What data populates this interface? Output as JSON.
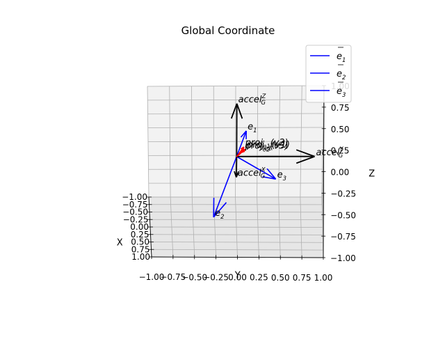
{
  "chart_data": {
    "type": "3d-quiver",
    "title": "Global Coordinate",
    "xlabel": "X",
    "ylabel": "Y",
    "zlabel": "Z",
    "xlim": [
      -1.0,
      1.0
    ],
    "ylim": [
      -1.0,
      1.0
    ],
    "zlim": [
      -1.0,
      1.0
    ],
    "x_ticks": [
      "−1.00",
      "−0.75",
      "−0.50",
      "−0.25",
      "0.00",
      "0.25",
      "0.50",
      "0.75",
      "1.00"
    ],
    "y_ticks": [
      "−1.00",
      "−0.75",
      "−0.50",
      "−0.25",
      "0.00",
      "0.25",
      "0.50",
      "0.75",
      "1.00"
    ],
    "z_ticks": [
      "−1.00",
      "−0.75",
      "−0.50",
      "−0.25",
      "0.00",
      "0.25",
      "0.50",
      "0.75",
      "1.00"
    ],
    "grid": true,
    "legend_position": "top-right",
    "legend": [
      {
        "base": "e",
        "sub": "1",
        "color": "#0000ff"
      },
      {
        "base": "e",
        "sub": "2",
        "color": "#0000ff"
      },
      {
        "base": "e",
        "sub": "3",
        "color": "#0000ff"
      }
    ],
    "vectors": [
      {
        "name": "e1",
        "label": "e",
        "label_sub": "1",
        "color": "#0000ff",
        "tip": [
          0.74,
          0.1,
          0.45
        ]
      },
      {
        "name": "e2",
        "label": "e",
        "label_sub": "2",
        "color": "#0000ff",
        "tip": [
          0.35,
          -0.27,
          -0.73
        ]
      },
      {
        "name": "e3",
        "label": "e",
        "label_sub": "3",
        "color": "#0000ff",
        "tip": [
          -0.62,
          0.46,
          -0.52
        ]
      },
      {
        "name": "accel_x",
        "label": "accel",
        "label_sup": "X",
        "label_sub": "G",
        "color": "#000000",
        "tip": [
          -0.2,
          0.0,
          -0.35
        ]
      },
      {
        "name": "accel_y",
        "label": "accel",
        "label_sup": "Y",
        "label_sub": "G",
        "color": "#000000",
        "tip": [
          0.0,
          0.9,
          0.0
        ]
      },
      {
        "name": "accel_z",
        "label": "accel",
        "label_sup": "Z",
        "label_sub": "G",
        "color": "#000000",
        "tip": [
          0.0,
          0.0,
          0.75
        ]
      },
      {
        "name": "proj_v1",
        "label": "proj",
        "label_sub": "e1",
        "label_suffix": "(v1)",
        "color": "#ff0000",
        "tip": [
          0.08,
          0.1,
          0.12
        ]
      },
      {
        "name": "proj_v2",
        "label": "proj",
        "label_sub": "e1",
        "label_suffix": "(v2)",
        "color": "#ff0000",
        "tip": [
          0.25,
          0.08,
          0.18
        ]
      },
      {
        "name": "proj_v3",
        "label": "proj",
        "label_sub": "e2",
        "label_suffix": "(v3)",
        "color": "#ff0000",
        "tip": [
          0.15,
          0.08,
          0.12
        ]
      }
    ]
  }
}
